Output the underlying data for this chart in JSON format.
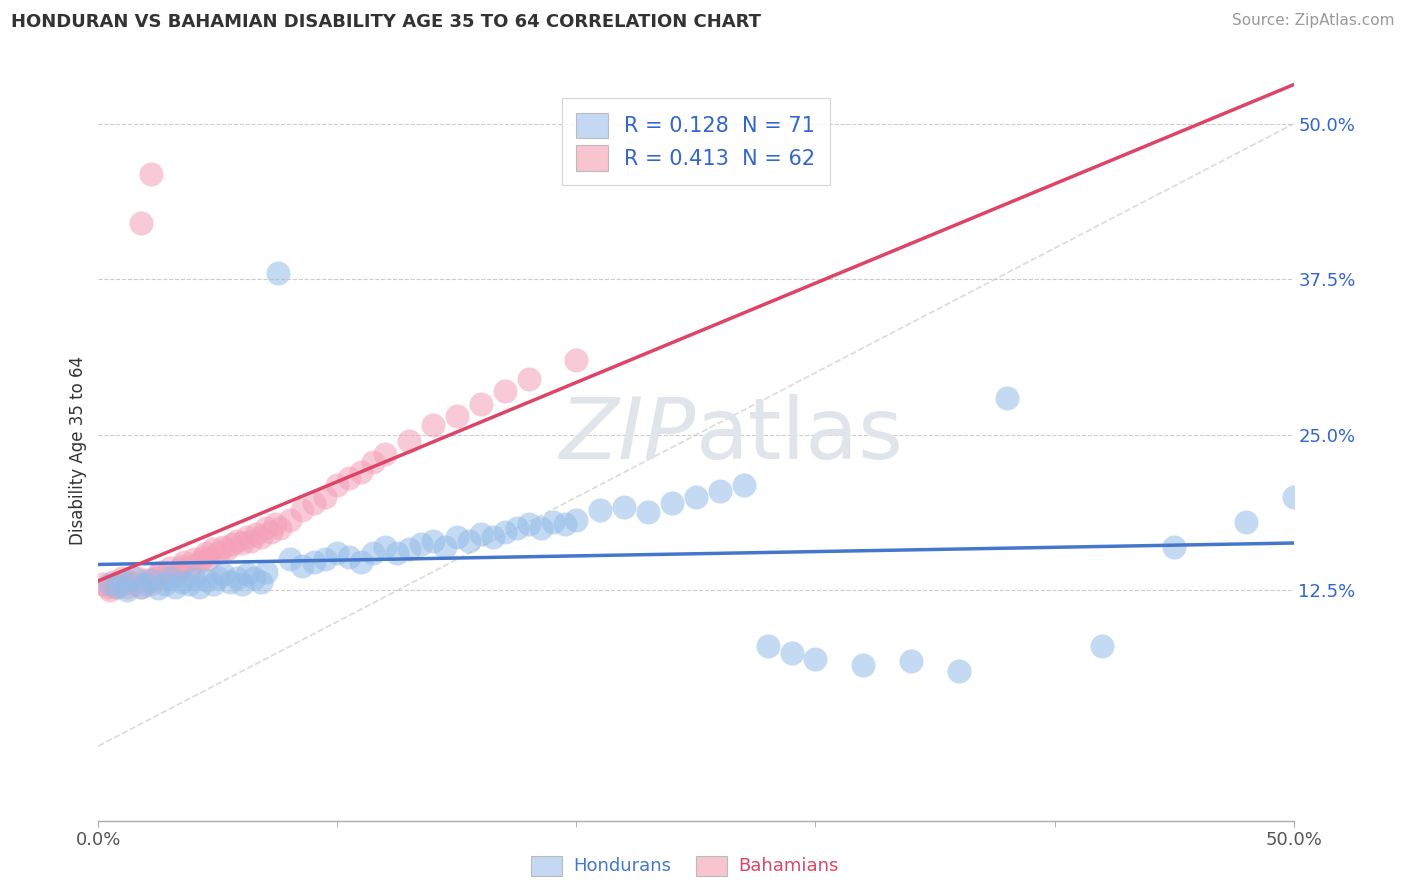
{
  "title": "HONDURAN VS BAHAMIAN DISABILITY AGE 35 TO 64 CORRELATION CHART",
  "source": "Source: ZipAtlas.com",
  "ylabel": "Disability Age 35 to 64",
  "ytick_vals": [
    0.125,
    0.25,
    0.375,
    0.5
  ],
  "ytick_labels": [
    "12.5%",
    "25.0%",
    "37.5%",
    "50.0%"
  ],
  "xlim": [
    0.0,
    0.5
  ],
  "ylim": [
    -0.06,
    0.535
  ],
  "R_honduran": 0.128,
  "N_honduran": 71,
  "R_bahamian": 0.413,
  "N_bahamian": 62,
  "color_honduran": "#94bce8",
  "color_bahamian": "#f4a0b8",
  "line_color_honduran": "#4477cc",
  "line_color_bahamian": "#dd4466",
  "diag_line_color": "#cccccc",
  "legend_box_honduran": "#c4d8f4",
  "legend_box_bahamian": "#f8c4d0",
  "bg_color": "#ffffff",
  "grid_color": "#cccccc",
  "watermark_color": "#e0e4eb",
  "title_color": "#333333",
  "source_color": "#999999",
  "tick_color_y": "#3366cc",
  "tick_color_x": "#555555",
  "legend_text_color": "#3366cc",
  "hon_scatter_x": [
    0.005,
    0.008,
    0.01,
    0.012,
    0.015,
    0.018,
    0.02,
    0.022,
    0.025,
    0.028,
    0.03,
    0.032,
    0.035,
    0.038,
    0.04,
    0.042,
    0.045,
    0.048,
    0.05,
    0.052,
    0.055,
    0.058,
    0.06,
    0.062,
    0.065,
    0.068,
    0.07,
    0.075,
    0.08,
    0.085,
    0.09,
    0.095,
    0.1,
    0.105,
    0.11,
    0.115,
    0.12,
    0.125,
    0.13,
    0.135,
    0.14,
    0.145,
    0.15,
    0.155,
    0.16,
    0.165,
    0.17,
    0.175,
    0.18,
    0.185,
    0.19,
    0.195,
    0.2,
    0.21,
    0.22,
    0.23,
    0.24,
    0.25,
    0.26,
    0.27,
    0.28,
    0.29,
    0.3,
    0.32,
    0.34,
    0.36,
    0.38,
    0.42,
    0.45,
    0.48,
    0.5
  ],
  "hon_scatter_y": [
    0.13,
    0.128,
    0.132,
    0.125,
    0.135,
    0.128,
    0.13,
    0.133,
    0.127,
    0.13,
    0.135,
    0.128,
    0.132,
    0.13,
    0.135,
    0.128,
    0.133,
    0.13,
    0.135,
    0.138,
    0.132,
    0.135,
    0.13,
    0.138,
    0.135,
    0.132,
    0.14,
    0.38,
    0.15,
    0.145,
    0.148,
    0.15,
    0.155,
    0.152,
    0.148,
    0.155,
    0.16,
    0.155,
    0.158,
    0.162,
    0.165,
    0.16,
    0.168,
    0.165,
    0.17,
    0.168,
    0.172,
    0.175,
    0.178,
    0.175,
    0.18,
    0.178,
    0.182,
    0.19,
    0.192,
    0.188,
    0.195,
    0.2,
    0.205,
    0.21,
    0.08,
    0.075,
    0.07,
    0.065,
    0.068,
    0.06,
    0.28,
    0.08,
    0.16,
    0.18,
    0.2
  ],
  "bah_scatter_x": [
    0.002,
    0.004,
    0.005,
    0.006,
    0.007,
    0.008,
    0.01,
    0.012,
    0.013,
    0.015,
    0.016,
    0.018,
    0.02,
    0.022,
    0.024,
    0.025,
    0.026,
    0.028,
    0.03,
    0.032,
    0.034,
    0.035,
    0.036,
    0.038,
    0.04,
    0.042,
    0.044,
    0.045,
    0.046,
    0.048,
    0.05,
    0.052,
    0.054,
    0.056,
    0.058,
    0.06,
    0.062,
    0.064,
    0.066,
    0.068,
    0.07,
    0.072,
    0.074,
    0.076,
    0.08,
    0.085,
    0.09,
    0.095,
    0.1,
    0.105,
    0.11,
    0.115,
    0.12,
    0.13,
    0.14,
    0.15,
    0.16,
    0.17,
    0.18,
    0.2,
    0.018,
    0.022
  ],
  "bah_scatter_y": [
    0.13,
    0.128,
    0.125,
    0.132,
    0.128,
    0.13,
    0.135,
    0.128,
    0.132,
    0.13,
    0.135,
    0.128,
    0.133,
    0.13,
    0.135,
    0.138,
    0.14,
    0.135,
    0.143,
    0.138,
    0.142,
    0.145,
    0.148,
    0.143,
    0.15,
    0.148,
    0.152,
    0.155,
    0.15,
    0.158,
    0.155,
    0.16,
    0.158,
    0.162,
    0.165,
    0.163,
    0.168,
    0.165,
    0.17,
    0.168,
    0.175,
    0.172,
    0.178,
    0.175,
    0.182,
    0.19,
    0.195,
    0.2,
    0.21,
    0.215,
    0.22,
    0.228,
    0.235,
    0.245,
    0.258,
    0.265,
    0.275,
    0.285,
    0.295,
    0.31,
    0.42,
    0.46
  ]
}
